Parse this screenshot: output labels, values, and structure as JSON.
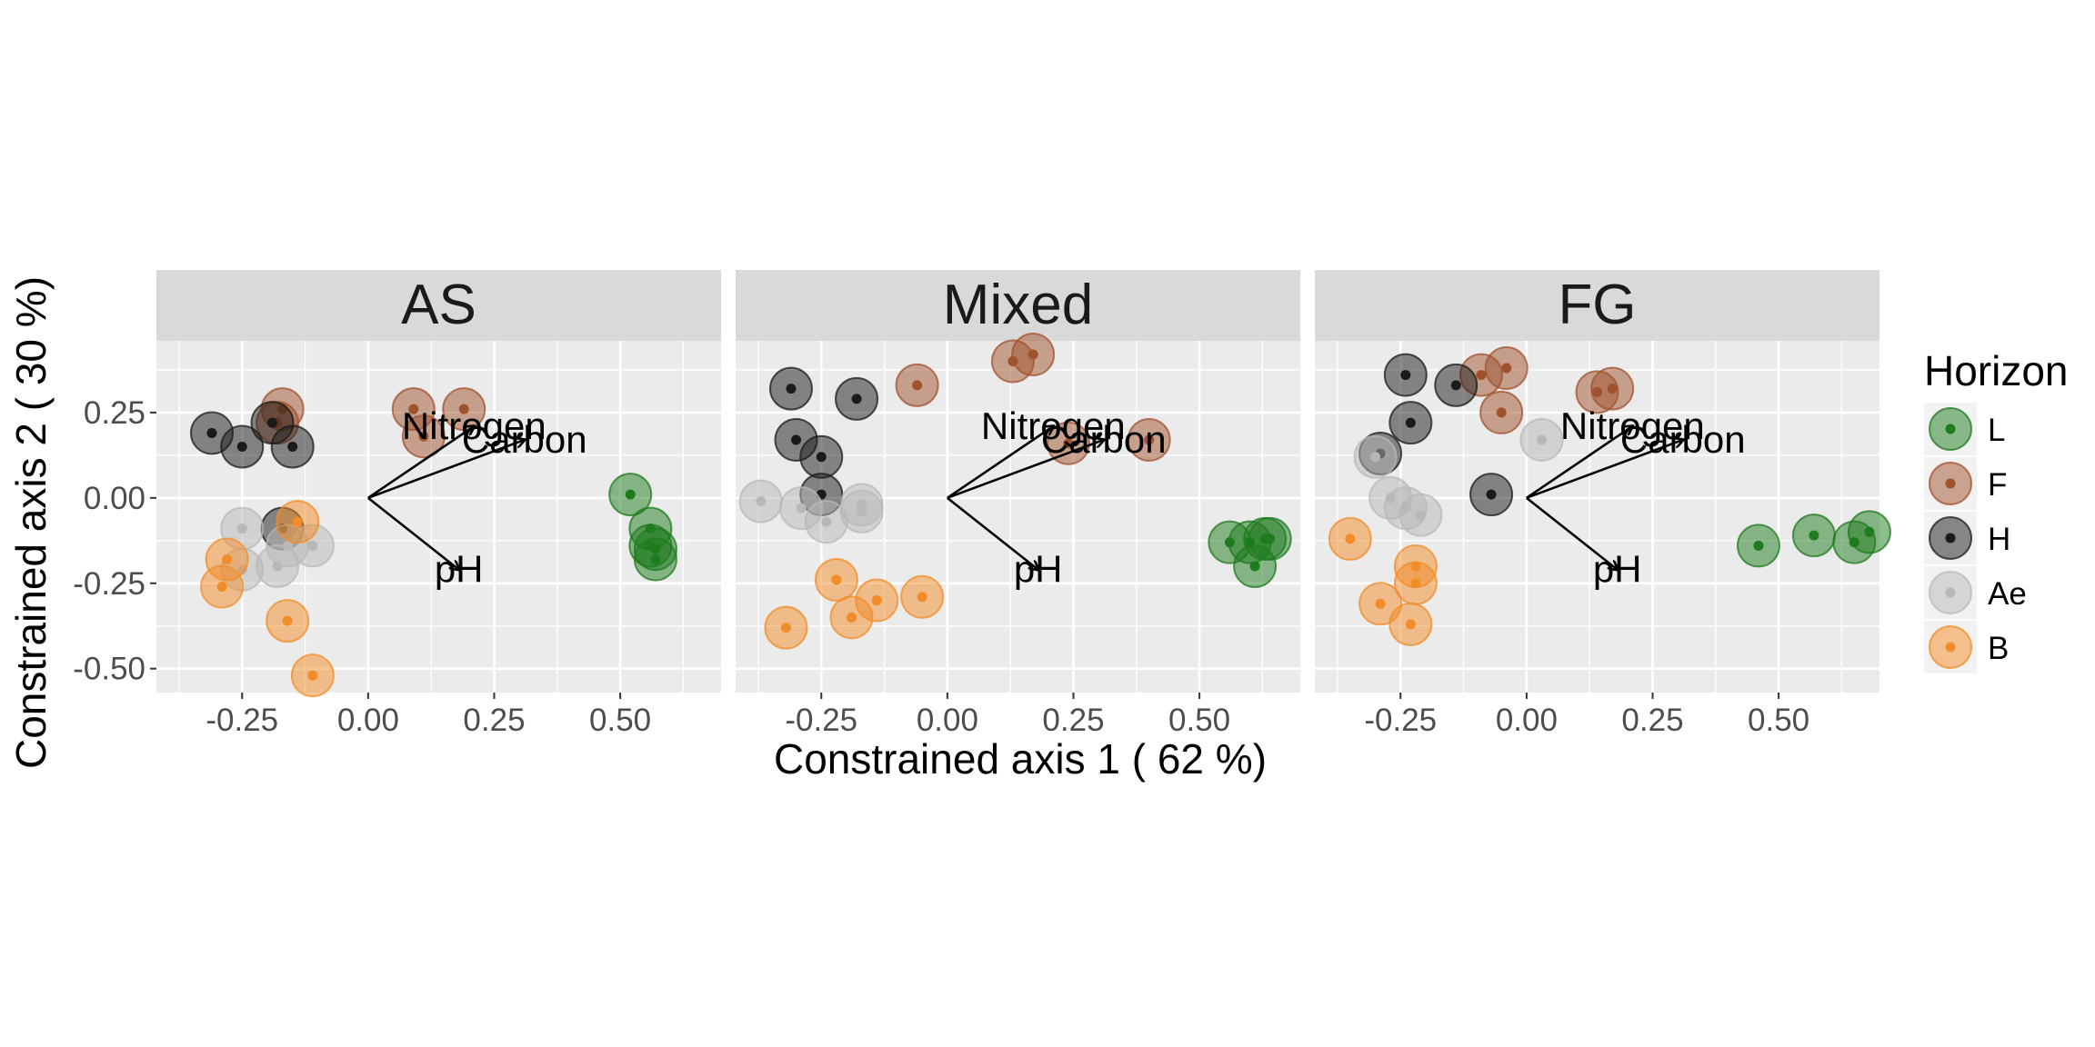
{
  "chart_data": {
    "type": "scatter",
    "title": "",
    "xlabel": "Constrained axis 1 ( 62 %)",
    "ylabel": "Constrained axis 2 ( 30 %)",
    "xlim": [
      -0.42,
      0.7
    ],
    "ylim": [
      -0.57,
      0.46
    ],
    "x_ticks": [
      -0.25,
      0.0,
      0.25,
      0.5
    ],
    "x_tick_labels": [
      "-0.25",
      "0.00",
      "0.25",
      "0.50"
    ],
    "y_ticks": [
      -0.5,
      -0.25,
      0.0,
      0.25
    ],
    "y_tick_labels": [
      "-0.50",
      "-0.25",
      "0.00",
      "0.25"
    ],
    "grid": true,
    "legend": {
      "title": "Horizon",
      "position": "right",
      "entries": [
        {
          "name": "L",
          "color": "#1e7b1e"
        },
        {
          "name": "F",
          "color": "#a0522d"
        },
        {
          "name": "H",
          "color": "#1a1a1a"
        },
        {
          "name": "Ae",
          "color": "#b8b8b8"
        },
        {
          "name": "B",
          "color": "#f28c28"
        }
      ]
    },
    "arrows": [
      {
        "label": "Nitrogen",
        "x": 0.21,
        "y": 0.21
      },
      {
        "label": "Carbon",
        "x": 0.31,
        "y": 0.17
      },
      {
        "label": "pH",
        "x": 0.18,
        "y": -0.21
      }
    ],
    "panels": [
      {
        "title": "AS",
        "series": [
          {
            "name": "L",
            "points": [
              [
                0.52,
                0.01
              ],
              [
                0.56,
                -0.09
              ],
              [
                0.56,
                -0.14
              ],
              [
                0.57,
                -0.15
              ],
              [
                0.57,
                -0.18
              ]
            ]
          },
          {
            "name": "F",
            "points": [
              [
                0.09,
                0.26
              ],
              [
                0.19,
                0.26
              ],
              [
                0.11,
                0.18
              ],
              [
                -0.17,
                0.26
              ],
              [
                -0.18,
                0.22
              ]
            ]
          },
          {
            "name": "H",
            "points": [
              [
                -0.31,
                0.19
              ],
              [
                -0.25,
                0.15
              ],
              [
                -0.19,
                0.22
              ],
              [
                -0.15,
                0.15
              ],
              [
                -0.17,
                -0.09
              ]
            ]
          },
          {
            "name": "Ae",
            "points": [
              [
                -0.25,
                -0.09
              ],
              [
                -0.25,
                -0.21
              ],
              [
                -0.18,
                -0.2
              ],
              [
                -0.16,
                -0.14
              ],
              [
                -0.11,
                -0.14
              ]
            ]
          },
          {
            "name": "B",
            "points": [
              [
                -0.14,
                -0.07
              ],
              [
                -0.28,
                -0.18
              ],
              [
                -0.29,
                -0.26
              ],
              [
                -0.16,
                -0.36
              ],
              [
                -0.11,
                -0.52
              ]
            ]
          }
        ]
      },
      {
        "title": "Mixed",
        "series": [
          {
            "name": "L",
            "points": [
              [
                0.56,
                -0.13
              ],
              [
                0.6,
                -0.13
              ],
              [
                0.63,
                -0.12
              ],
              [
                0.64,
                -0.12
              ],
              [
                0.61,
                -0.2
              ]
            ]
          },
          {
            "name": "F",
            "points": [
              [
                0.13,
                0.4
              ],
              [
                0.17,
                0.42
              ],
              [
                -0.06,
                0.33
              ],
              [
                0.24,
                0.16
              ],
              [
                0.4,
                0.17
              ]
            ]
          },
          {
            "name": "H",
            "points": [
              [
                -0.31,
                0.32
              ],
              [
                -0.18,
                0.29
              ],
              [
                -0.3,
                0.17
              ],
              [
                -0.25,
                0.12
              ],
              [
                -0.25,
                0.01
              ]
            ]
          },
          {
            "name": "Ae",
            "points": [
              [
                -0.37,
                -0.01
              ],
              [
                -0.29,
                -0.03
              ],
              [
                -0.24,
                -0.07
              ],
              [
                -0.17,
                -0.02
              ],
              [
                -0.17,
                -0.04
              ]
            ]
          },
          {
            "name": "B",
            "points": [
              [
                -0.22,
                -0.24
              ],
              [
                -0.19,
                -0.35
              ],
              [
                -0.14,
                -0.3
              ],
              [
                -0.05,
                -0.29
              ],
              [
                -0.32,
                -0.38
              ]
            ]
          }
        ]
      },
      {
        "title": "FG",
        "series": [
          {
            "name": "L",
            "points": [
              [
                0.46,
                -0.14
              ],
              [
                0.57,
                -0.11
              ],
              [
                0.65,
                -0.13
              ],
              [
                0.68,
                -0.1
              ]
            ]
          },
          {
            "name": "F",
            "points": [
              [
                -0.09,
                0.36
              ],
              [
                -0.04,
                0.38
              ],
              [
                -0.05,
                0.25
              ],
              [
                0.14,
                0.31
              ],
              [
                0.17,
                0.32
              ]
            ]
          },
          {
            "name": "H",
            "points": [
              [
                -0.24,
                0.36
              ],
              [
                -0.14,
                0.33
              ],
              [
                -0.23,
                0.22
              ],
              [
                -0.29,
                0.13
              ],
              [
                -0.07,
                0.01
              ]
            ]
          },
          {
            "name": "Ae",
            "points": [
              [
                0.03,
                0.17
              ],
              [
                -0.3,
                0.12
              ],
              [
                -0.27,
                0.0
              ],
              [
                -0.24,
                -0.03
              ],
              [
                -0.21,
                -0.05
              ]
            ]
          },
          {
            "name": "B",
            "points": [
              [
                -0.35,
                -0.12
              ],
              [
                -0.22,
                -0.2
              ],
              [
                -0.22,
                -0.25
              ],
              [
                -0.29,
                -0.31
              ],
              [
                -0.23,
                -0.37
              ]
            ]
          }
        ]
      }
    ]
  }
}
